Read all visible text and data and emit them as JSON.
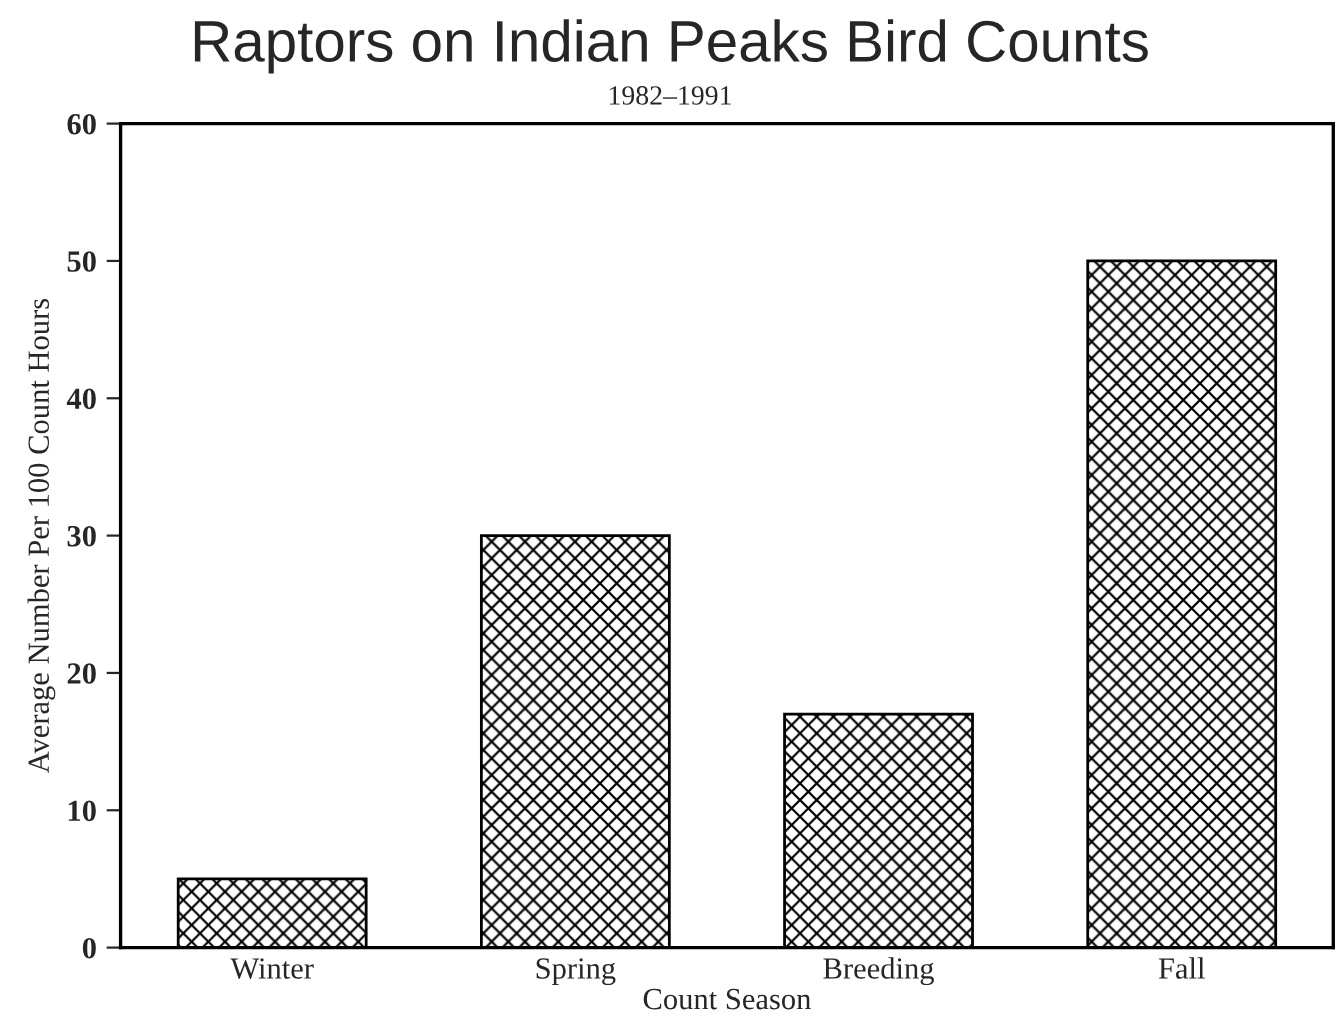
{
  "chart_data": {
    "type": "bar",
    "title": "Raptors on Indian Peaks Bird Counts",
    "subtitle": "1982–1991",
    "xlabel": "Count Season",
    "ylabel": "Average Number Per 100 Count Hours",
    "categories": [
      "Winter",
      "Spring",
      "Breeding",
      "Fall"
    ],
    "values": [
      5,
      30,
      17,
      50
    ],
    "color": "#000000",
    "ylim": [
      0,
      60
    ],
    "yticks": [
      0,
      10,
      20,
      30,
      40,
      50,
      60
    ],
    "grid": false,
    "legend": false
  }
}
